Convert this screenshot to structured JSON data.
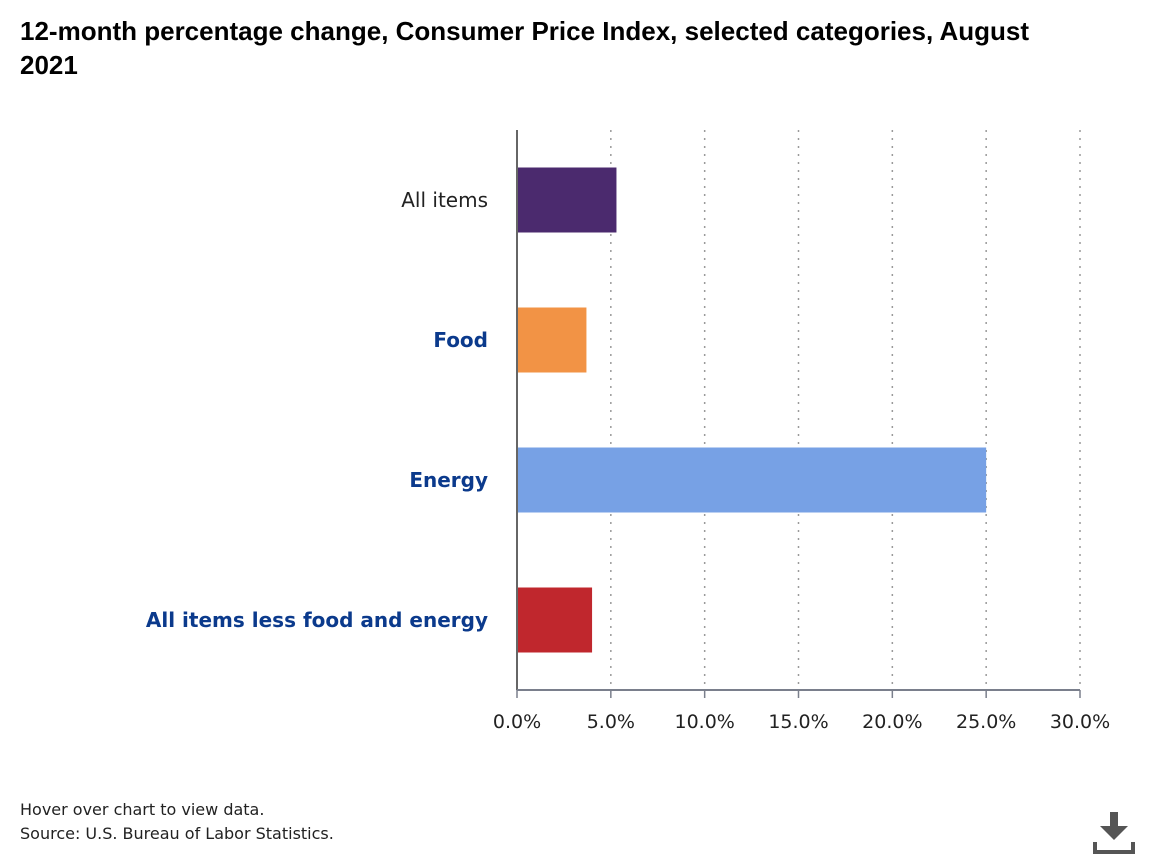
{
  "title": "12-month percentage change, Consumer Price Index, selected categories, August 2021",
  "footer": {
    "hover_note": "Hover over chart to view data.",
    "source": "Source: U.S. Bureau of Labor Statistics."
  },
  "download": {
    "icon": "download-icon"
  },
  "chart_data": {
    "type": "bar",
    "orientation": "horizontal",
    "categories": [
      "All items",
      "Food",
      "Energy",
      "All items less food and energy"
    ],
    "values": [
      5.3,
      3.7,
      25.0,
      4.0
    ],
    "colors": [
      "#4b2a6e",
      "#f29345",
      "#77a1e5",
      "#c0272d"
    ],
    "label_colors": [
      "#222222",
      "#0b3a8c",
      "#0b3a8c",
      "#0b3a8c"
    ],
    "label_weights": [
      "normal",
      "bold",
      "bold",
      "bold"
    ],
    "xlim": [
      0,
      30
    ],
    "ticks": [
      0,
      5,
      10,
      15,
      20,
      25,
      30
    ],
    "tick_labels": [
      "0.0%",
      "5.0%",
      "10.0%",
      "15.0%",
      "20.0%",
      "25.0%",
      "30.0%"
    ],
    "grid": "vertical-dotted",
    "legend": "none"
  }
}
